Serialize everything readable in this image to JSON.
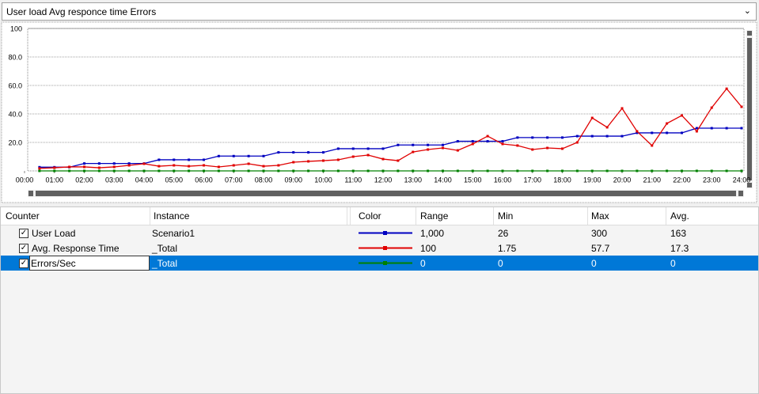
{
  "dropdown": {
    "label": "User load Avg responce time Errors"
  },
  "chart_data": {
    "type": "line",
    "x": [
      0.5,
      1,
      1.5,
      2,
      2.5,
      3,
      3.5,
      4,
      4.5,
      5,
      5.5,
      6,
      6.5,
      7,
      7.5,
      8,
      8.5,
      9,
      9.5,
      10,
      10.5,
      11,
      11.5,
      12,
      12.5,
      13,
      13.5,
      14,
      14.5,
      15,
      15.5,
      16,
      16.5,
      17,
      17.5,
      18,
      18.5,
      19,
      19.5,
      20,
      20.5,
      21,
      21.5,
      22,
      22.5,
      23,
      23.5,
      24
    ],
    "xlim": [
      0,
      24
    ],
    "xticks": [
      {
        "value": 0,
        "label": "00:00"
      },
      {
        "value": 1,
        "label": "01:00"
      },
      {
        "value": 2,
        "label": "02:00"
      },
      {
        "value": 3,
        "label": "03:00"
      },
      {
        "value": 4,
        "label": "04:00"
      },
      {
        "value": 5,
        "label": "05:00"
      },
      {
        "value": 6,
        "label": "06:00"
      },
      {
        "value": 7,
        "label": "07:00"
      },
      {
        "value": 8,
        "label": "08:00"
      },
      {
        "value": 9,
        "label": "09:00"
      },
      {
        "value": 10,
        "label": "10:00"
      },
      {
        "value": 11,
        "label": "11:00"
      },
      {
        "value": 12,
        "label": "12:00"
      },
      {
        "value": 13,
        "label": "13:00"
      },
      {
        "value": 14,
        "label": "14:00"
      },
      {
        "value": 15,
        "label": "15:00"
      },
      {
        "value": 16,
        "label": "16:00"
      },
      {
        "value": 17,
        "label": "17:00"
      },
      {
        "value": 18,
        "label": "18:00"
      },
      {
        "value": 19,
        "label": "19:00"
      },
      {
        "value": 20,
        "label": "20:00"
      },
      {
        "value": 21,
        "label": "21:00"
      },
      {
        "value": 22,
        "label": "22:00"
      },
      {
        "value": 23,
        "label": "23:00"
      },
      {
        "value": 24,
        "label": "24:00"
      }
    ],
    "ylim": [
      0,
      100
    ],
    "yticks": [
      {
        "value": 20,
        "label": "20.0"
      },
      {
        "value": 40,
        "label": "40.0"
      },
      {
        "value": 60,
        "label": "60.0"
      },
      {
        "value": 80,
        "label": "80.0"
      },
      100
    ],
    "grid": true,
    "series": [
      {
        "name": "User Load",
        "color": "#0000c0",
        "values": [
          2.6,
          2.6,
          2.6,
          5.2,
          5.2,
          5.2,
          5.2,
          5.2,
          7.8,
          7.8,
          7.8,
          7.8,
          10.4,
          10.4,
          10.4,
          10.4,
          13,
          13,
          13,
          13,
          15.6,
          15.6,
          15.6,
          15.6,
          18.2,
          18.2,
          18.2,
          18.2,
          20.8,
          20.8,
          20.8,
          20.8,
          23.4,
          23.4,
          23.4,
          23.4,
          24.4,
          24.4,
          24.4,
          24.4,
          26.7,
          26.7,
          26.7,
          26.7,
          30,
          30,
          30,
          30
        ]
      },
      {
        "name": "Avg. Response Time",
        "color": "#e00000",
        "values": [
          1.75,
          2.2,
          2.8,
          2.8,
          2.2,
          2.8,
          3.9,
          5,
          3.3,
          3.9,
          3.3,
          3.9,
          2.8,
          3.9,
          5,
          3.3,
          3.9,
          6.1,
          6.7,
          7.2,
          7.8,
          10,
          11.1,
          8.3,
          7.2,
          13.3,
          15,
          16.1,
          14.4,
          18.9,
          24.4,
          18.9,
          17.8,
          15,
          16.1,
          15.6,
          20,
          37.2,
          30.6,
          43.9,
          27.8,
          17.8,
          33.3,
          38.9,
          27.8,
          44.4,
          57.7,
          45
        ]
      },
      {
        "name": "Errors/Sec",
        "color": "#008000",
        "values": [
          0,
          0,
          0,
          0,
          0,
          0,
          0,
          0,
          0,
          0,
          0,
          0,
          0,
          0,
          0,
          0,
          0,
          0,
          0,
          0,
          0,
          0,
          0,
          0,
          0,
          0,
          0,
          0,
          0,
          0,
          0,
          0,
          0,
          0,
          0,
          0,
          0,
          0,
          0,
          0,
          0,
          0,
          0,
          0,
          0,
          0,
          0,
          0
        ]
      }
    ]
  },
  "table": {
    "columns": [
      "Counter",
      "Instance",
      "Color",
      "Range",
      "Min",
      "Max",
      "Avg."
    ],
    "rows": [
      {
        "counter": "User Load",
        "instance": "Scenario1",
        "range": "1,000",
        "min": "26",
        "max": "300",
        "avg": "163"
      },
      {
        "counter": "Avg. Response Time",
        "instance": "_Total",
        "range": "100",
        "min": "1.75",
        "max": "57.7",
        "avg": "17.3"
      },
      {
        "counter": "Errors/Sec",
        "instance": "_Total",
        "range": "0",
        "min": "0",
        "max": "0",
        "avg": "0"
      }
    ]
  }
}
